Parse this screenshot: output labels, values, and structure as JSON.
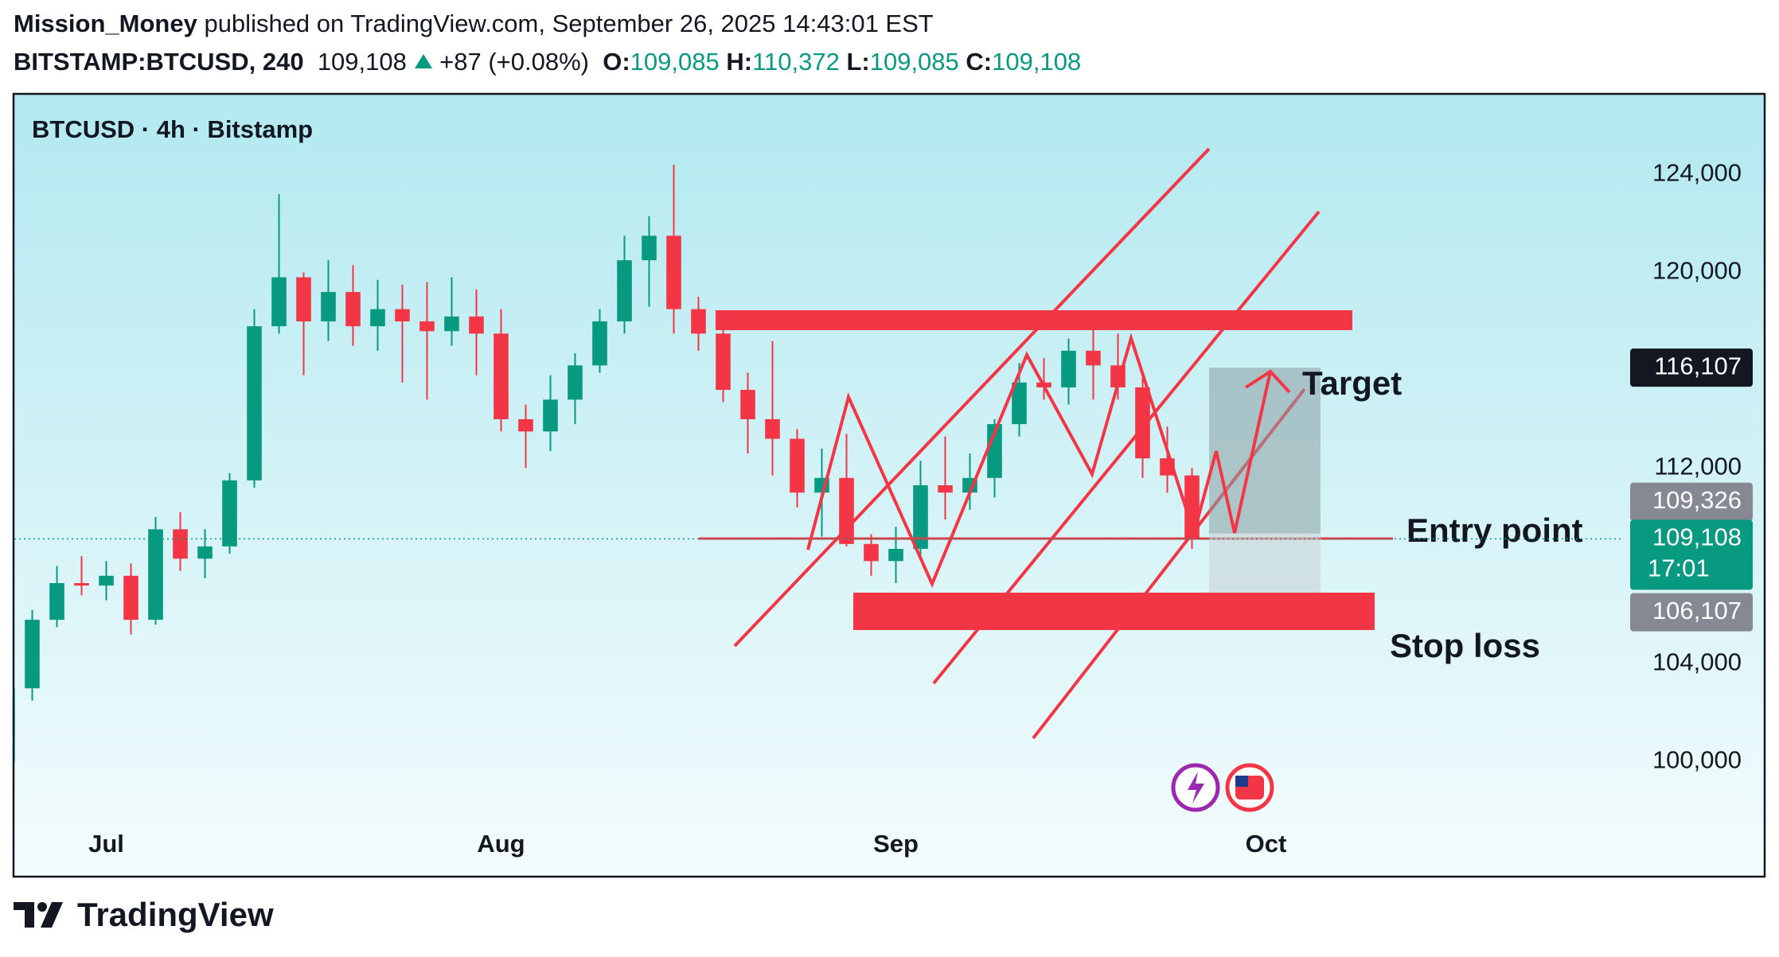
{
  "header": {
    "author": "Mission_Money",
    "published": "published on TradingView.com, September 26, 2025 14:43:01 EST",
    "symbol": "BITSTAMP:BTCUSD, 240",
    "last": "109,108",
    "change": "+87 (+0.08%)",
    "ohlc": [
      {
        "label": "O:",
        "value": "109,085"
      },
      {
        "label": "H:",
        "value": "110,372"
      },
      {
        "label": "L:",
        "value": "109,085"
      },
      {
        "label": "C:",
        "value": "109,108"
      }
    ]
  },
  "chart_data": {
    "type": "candlestick",
    "title": "BTCUSD · 4h · Bitstamp",
    "categories": [
      null,
      null,
      null,
      null,
      "Jul",
      null,
      null,
      null,
      null,
      null,
      null,
      null,
      null,
      null,
      null,
      null,
      null,
      null,
      null,
      null,
      "Aug",
      null,
      null,
      null,
      null,
      null,
      null,
      null,
      null,
      null,
      null,
      null,
      null,
      null,
      null,
      null,
      "Sep",
      null,
      null,
      null,
      null,
      null,
      null,
      null,
      null,
      null,
      null,
      null,
      null,
      null,
      null,
      "Oct",
      null,
      null,
      null,
      null,
      null,
      null,
      null,
      null,
      null,
      null,
      null,
      null,
      null,
      null
    ],
    "open": [
      100000,
      103000,
      105800,
      107300,
      107200,
      107600,
      105800,
      109500,
      108300,
      108800,
      111500,
      117800,
      119800,
      118000,
      119200,
      117800,
      118500,
      118000,
      117600,
      118200,
      117500,
      114000,
      113500,
      114800,
      116200,
      118000,
      120500,
      121500,
      118500,
      117500,
      115200,
      114000,
      113200,
      111000,
      111600,
      108900,
      108200,
      108700,
      111300,
      111000,
      111600,
      113800,
      115500,
      115300,
      116800,
      116200,
      115300,
      112400,
      111700,
      null,
      null,
      null,
      null,
      null,
      null,
      null,
      null,
      null,
      null,
      null,
      null,
      null,
      null,
      null,
      null,
      null
    ],
    "high": [
      103500,
      106200,
      108000,
      108400,
      108200,
      108100,
      110000,
      110200,
      109500,
      111800,
      118500,
      123200,
      120000,
      120500,
      120300,
      119700,
      119500,
      119600,
      119800,
      119300,
      118500,
      114600,
      115800,
      116700,
      118500,
      121500,
      122300,
      124400,
      119000,
      117800,
      115900,
      117200,
      113600,
      112800,
      113400,
      109300,
      109600,
      112300,
      113300,
      112600,
      114000,
      116300,
      116500,
      117300,
      118000,
      117500,
      115700,
      113700,
      112000,
      null,
      null,
      null,
      null,
      null,
      null,
      null,
      null,
      null,
      null,
      null,
      null,
      null,
      null,
      null,
      null,
      null
    ],
    "low": [
      98800,
      102500,
      105500,
      106800,
      106600,
      105200,
      105600,
      107800,
      107500,
      108500,
      111200,
      117500,
      115800,
      117200,
      117000,
      116800,
      115500,
      114800,
      117000,
      115800,
      113500,
      112000,
      112700,
      113800,
      115900,
      117500,
      118600,
      117500,
      116800,
      114700,
      112600,
      111700,
      110400,
      109200,
      108800,
      107600,
      107300,
      108300,
      109900,
      110300,
      110800,
      113300,
      114800,
      114600,
      114800,
      114800,
      111600,
      111000,
      108700,
      null,
      null,
      null,
      null,
      null,
      null,
      null,
      null,
      null,
      null,
      null,
      null,
      null,
      null,
      null,
      null,
      null
    ],
    "close": [
      103000,
      105800,
      107300,
      107200,
      107600,
      105800,
      109500,
      108300,
      108800,
      111500,
      117800,
      119800,
      118000,
      119200,
      117800,
      118500,
      118000,
      117600,
      118200,
      117500,
      114000,
      113500,
      114800,
      116200,
      118000,
      120500,
      121500,
      118500,
      117500,
      115200,
      114000,
      113200,
      111000,
      111600,
      108900,
      108200,
      108700,
      111300,
      111000,
      111600,
      113800,
      115500,
      115300,
      116800,
      116200,
      115300,
      112400,
      111700,
      109108,
      null,
      null,
      null,
      null,
      null,
      null,
      null,
      null,
      null,
      null,
      null,
      null,
      null,
      null,
      null,
      null,
      null
    ],
    "up_color": "#089981",
    "down_color": "#f23645",
    "ylim": [
      95300,
      127300
    ],
    "yticks": [
      {
        "value": 100000,
        "label": "100,000"
      },
      {
        "value": 104000,
        "label": "104,000"
      },
      {
        "value": 112000,
        "label": "112,000"
      },
      {
        "value": 120000,
        "label": "120,000"
      },
      {
        "value": 124000,
        "label": "124,000"
      }
    ],
    "position": {
      "target": {
        "value": 116107,
        "label": "116,107"
      },
      "entry": {
        "value": 109326,
        "label": "109,326"
      },
      "stop": {
        "value": 106107,
        "label": "106,107"
      }
    },
    "last_price": {
      "value": 109108,
      "label": "109,108",
      "countdown": "17:01"
    },
    "annotations": {
      "target": "Target",
      "entry": "Entry point",
      "stop": "Stop loss"
    }
  },
  "footer": {
    "brand": "TradingView"
  }
}
